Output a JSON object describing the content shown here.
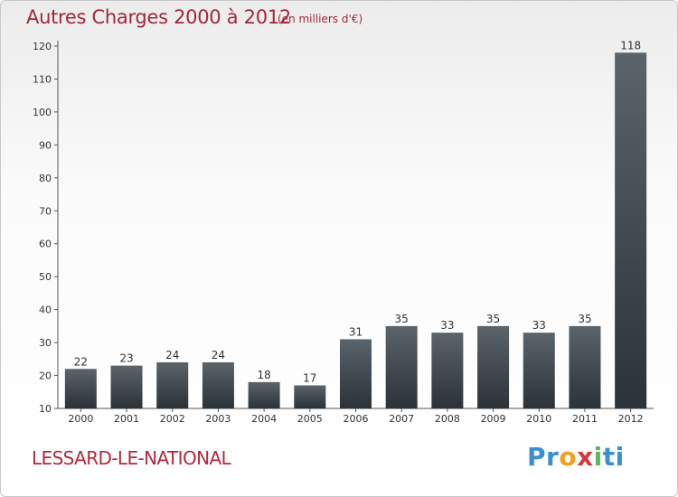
{
  "chart_data": {
    "type": "bar",
    "title": "Autres Charges 2000 à 2012",
    "subtitle": "(en milliers d'€)",
    "categories": [
      "2000",
      "2001",
      "2002",
      "2003",
      "2004",
      "2005",
      "2006",
      "2007",
      "2008",
      "2009",
      "2010",
      "2011",
      "2012"
    ],
    "values": [
      22,
      23,
      24,
      24,
      18,
      17,
      31,
      35,
      33,
      35,
      33,
      35,
      118
    ],
    "ylim": [
      10,
      120
    ],
    "yticks": [
      10,
      20,
      30,
      40,
      50,
      60,
      70,
      80,
      90,
      100,
      110,
      120
    ],
    "xlabel": "",
    "ylabel": "",
    "grid": false,
    "colors": {
      "bar_top": "#5b646b",
      "bar_bottom": "#2b3238",
      "title": "#a3273a"
    }
  },
  "footer": {
    "commune": "LESSARD-LE-NATIONAL",
    "logo": {
      "letters": [
        "P",
        "r",
        "o",
        "x",
        "i",
        "t",
        "i"
      ],
      "colors": [
        "#3a8fd0",
        "#3a8fd0",
        "#f0a020",
        "#d03a3a",
        "#5cb85c",
        "#3a8fd0",
        "#3a8fd0"
      ]
    }
  }
}
